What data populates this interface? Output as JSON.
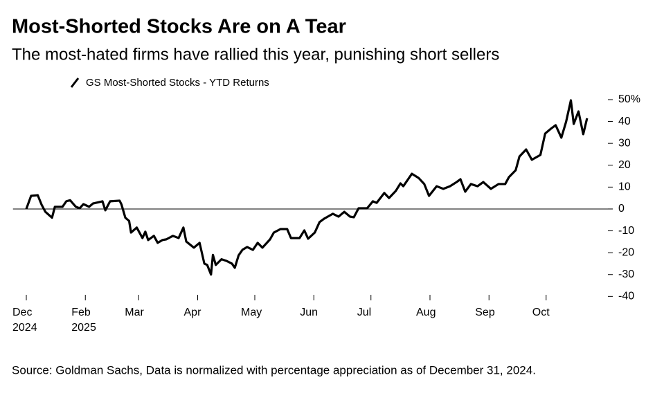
{
  "chart_data": {
    "type": "line",
    "title": "Most-Shorted Stocks Are on A Tear",
    "subtitle": "The most-hated firms have rallied this year, punishing short sellers",
    "source": "Source: Goldman Sachs, Data is normalized with percentage appreciation as of December 31, 2024.",
    "x": [
      0,
      2.5,
      6,
      8,
      10,
      13.5,
      15,
      19,
      21,
      23,
      26,
      28,
      30,
      33,
      35,
      40,
      41.5,
      44,
      49,
      50,
      52,
      54,
      55,
      58,
      61,
      62.5,
      64,
      67,
      69,
      71.5,
      73.5,
      77,
      80,
      82.5,
      84,
      88,
      91,
      93.5,
      95,
      97,
      98,
      99.5,
      102.5,
      105,
      108,
      109.5,
      111.5,
      113.5,
      116,
      119,
      121.5,
      124,
      128,
      130,
      133.5,
      137,
      139,
      143.5,
      146,
      148,
      151.5,
      154,
      156.5,
      161,
      164,
      167,
      170,
      172,
      174.5,
      179,
      182,
      184,
      188,
      190.5,
      194,
      196.5,
      198,
      202.5,
      206,
      209,
      211.5,
      215.5,
      219,
      222.5,
      226,
      228,
      230.5,
      233.5,
      237,
      240,
      244,
      248,
      251.5,
      253.5,
      257,
      259,
      262.5,
      265.5,
      270,
      272.5,
      275.5,
      278,
      281,
      283.5,
      286,
      287.5,
      290,
      292.5,
      294.5
    ],
    "series": [
      {
        "name": "GS Most-Shorted Stocks - YTD Returns",
        "color": "#000000",
        "values": [
          0,
          6,
          6.3,
          2,
          -1.3,
          -4,
          1,
          1,
          3.5,
          4,
          1,
          0.3,
          2.2,
          1,
          2.5,
          3.5,
          -0.6,
          3.5,
          3.8,
          2,
          -4,
          -5.5,
          -10.8,
          -8.5,
          -13.3,
          -10.4,
          -14.2,
          -12.3,
          -15.5,
          -14.2,
          -13.9,
          -12.3,
          -13.3,
          -8.5,
          -14.9,
          -17.7,
          -15.5,
          -25,
          -25.6,
          -30,
          -21,
          -25.6,
          -23,
          -23.7,
          -25,
          -26.9,
          -21.2,
          -18.7,
          -17.4,
          -18.7,
          -15.5,
          -17.7,
          -13.9,
          -10.8,
          -9.2,
          -9.2,
          -13.3,
          -13.3,
          -9.8,
          -13.6,
          -10.8,
          -6,
          -4.4,
          -2.2,
          -3.5,
          -1.3,
          -3.5,
          -3.8,
          0.3,
          0.3,
          3.5,
          2.8,
          7.3,
          5,
          8.2,
          11.7,
          10.4,
          16.1,
          14.2,
          11.4,
          6,
          10.4,
          9.2,
          10.4,
          12.3,
          13.6,
          7.9,
          11.4,
          10.4,
          12.3,
          9.2,
          11.4,
          11.4,
          14.6,
          17.7,
          24,
          27.2,
          22.5,
          24.7,
          34.5,
          36.7,
          38.3,
          32.6,
          39.9,
          49.7,
          38.9,
          44.6,
          34.2,
          41.5
        ]
      }
    ],
    "xlim": [
      -7,
      308
    ],
    "xticks": [
      {
        "value": 0,
        "label": "Dec 2024"
      },
      {
        "value": 31,
        "label": "Feb 2025"
      },
      {
        "value": 59,
        "label": "Mar"
      },
      {
        "value": 90,
        "label": "Apr"
      },
      {
        "value": 120,
        "label": "May"
      },
      {
        "value": 151,
        "label": "Jun"
      },
      {
        "value": 181,
        "label": "Jul"
      },
      {
        "value": 212,
        "label": "Aug"
      },
      {
        "value": 243,
        "label": "Sep"
      },
      {
        "value": 273,
        "label": "Oct"
      }
    ],
    "ylim": [
      -41,
      51
    ],
    "yticks": [
      {
        "value": 50,
        "label": "50%"
      },
      40,
      30,
      20,
      10,
      0,
      -10,
      -20,
      -30,
      -40
    ]
  }
}
